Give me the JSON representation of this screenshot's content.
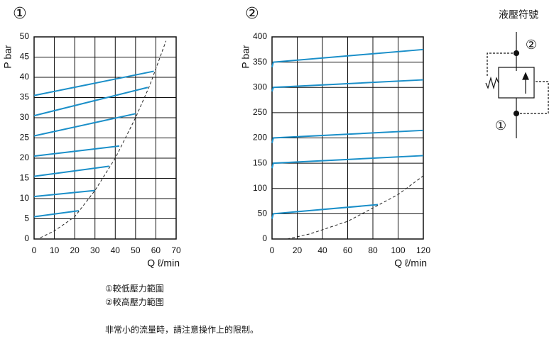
{
  "chart_data": [
    {
      "type": "line",
      "title": "①",
      "y_label": "P bar",
      "x_label": "Q ℓ/min",
      "xlim": [
        0,
        70
      ],
      "ylim": [
        0,
        50
      ],
      "xticks": [
        0,
        10,
        20,
        30,
        40,
        50,
        60,
        70
      ],
      "yticks": [
        0,
        5,
        10,
        15,
        20,
        25,
        30,
        35,
        40,
        45,
        50
      ],
      "grid": true,
      "series": [
        {
          "color": "#1a8fc9",
          "x": [
            0,
            22
          ],
          "values": [
            5.5,
            7
          ]
        },
        {
          "color": "#1a8fc9",
          "x": [
            0,
            30
          ],
          "values": [
            10.5,
            12
          ]
        },
        {
          "color": "#1a8fc9",
          "x": [
            0,
            37
          ],
          "values": [
            15.5,
            18
          ]
        },
        {
          "color": "#1a8fc9",
          "x": [
            0,
            42
          ],
          "values": [
            20.5,
            23
          ]
        },
        {
          "color": "#1a8fc9",
          "x": [
            0,
            50
          ],
          "values": [
            25.5,
            31
          ]
        },
        {
          "color": "#1a8fc9",
          "x": [
            0,
            56
          ],
          "values": [
            30.5,
            37.5
          ]
        },
        {
          "color": "#1a8fc9",
          "x": [
            0,
            59
          ],
          "values": [
            35.5,
            41.5
          ]
        },
        {
          "color": "#222222",
          "dashed": true,
          "x": [
            3,
            10,
            20,
            30,
            40,
            50,
            57,
            65
          ],
          "values": [
            0.3,
            2,
            5.5,
            12,
            20,
            30,
            38,
            49
          ]
        }
      ]
    },
    {
      "type": "line",
      "title": "②",
      "y_label": "P bar",
      "x_label": "Q ℓ/min",
      "xlim": [
        0,
        120
      ],
      "ylim": [
        0,
        400
      ],
      "xticks": [
        0,
        20,
        40,
        60,
        80,
        100,
        120
      ],
      "yticks": [
        0,
        50,
        100,
        150,
        200,
        250,
        300,
        350,
        400
      ],
      "grid": true,
      "series": [
        {
          "color": "#1a8fc9",
          "x": [
            0,
            1,
            84
          ],
          "values": [
            40,
            50,
            68
          ]
        },
        {
          "color": "#1a8fc9",
          "x": [
            0,
            1,
            120
          ],
          "values": [
            140,
            150,
            165
          ]
        },
        {
          "color": "#1a8fc9",
          "x": [
            0,
            1,
            120
          ],
          "values": [
            190,
            200,
            215
          ]
        },
        {
          "color": "#1a8fc9",
          "x": [
            0,
            1,
            120
          ],
          "values": [
            292,
            300,
            315
          ]
        },
        {
          "color": "#1a8fc9",
          "x": [
            0,
            1,
            120
          ],
          "values": [
            340,
            350,
            375
          ]
        },
        {
          "color": "#222222",
          "dashed": true,
          "x": [
            12,
            30,
            60,
            85,
            100,
            120
          ],
          "values": [
            0,
            10,
            35,
            68,
            88,
            125
          ]
        }
      ]
    }
  ],
  "symbol": {
    "title": "液壓符號",
    "port_top": "②",
    "port_bottom": "①"
  },
  "notes": [
    "①較低壓力範圍",
    "②較高壓力範圍",
    "非常小的流量時，請注意操作上的限制。"
  ]
}
